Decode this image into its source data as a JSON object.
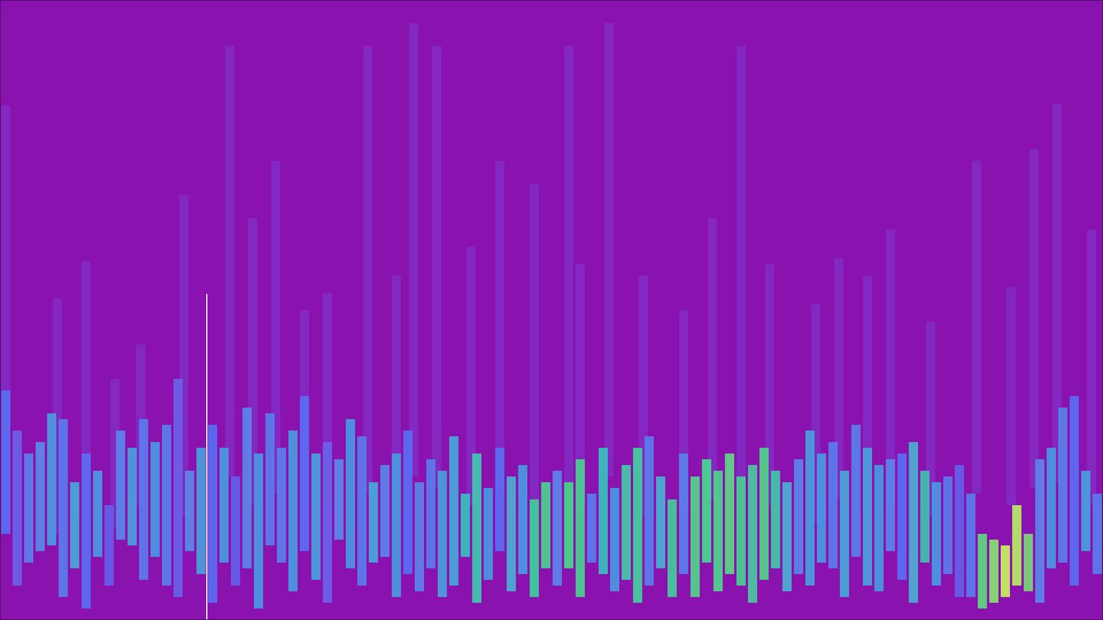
{
  "chart_data": {
    "type": "range_bar",
    "tick_labels": false,
    "xlim": [
      0,
      1920
    ],
    "ylim": [
      0,
      1080
    ],
    "background": {
      "color": "#7a44d8",
      "x": [
        10,
        100,
        150,
        200,
        245,
        320,
        400,
        440,
        480,
        530,
        570,
        640,
        690,
        720,
        760,
        820,
        870,
        930,
        990,
        1010,
        1060,
        1120,
        1190,
        1240,
        1290,
        1340,
        1420,
        1460,
        1510,
        1550,
        1620,
        1700,
        1760,
        1800,
        1840,
        1900
      ],
      "values": [
        896,
        560,
        625,
        420,
        480,
        740,
        1000,
        700,
        800,
        540,
        570,
        1000,
        600,
        1040,
        1000,
        650,
        800,
        760,
        1000,
        620,
        1040,
        600,
        540,
        700,
        1000,
        620,
        550,
        630,
        600,
        680,
        520,
        800,
        580,
        820,
        900,
        680
      ],
      "low": [
        200,
        150,
        180,
        160,
        200,
        180,
        250,
        200,
        220,
        180,
        200,
        220,
        180,
        250,
        230,
        200,
        220,
        190,
        240,
        200,
        250,
        180,
        190,
        210,
        240,
        200,
        170,
        210,
        190,
        200,
        180,
        220,
        200,
        230,
        240,
        200
      ]
    },
    "foreground": {
      "x": [
        10,
        30,
        50,
        70,
        90,
        110,
        130,
        150,
        170,
        190,
        210,
        230,
        250,
        270,
        290,
        310,
        330,
        350,
        370,
        390,
        410,
        430,
        450,
        470,
        490,
        510,
        530,
        550,
        570,
        590,
        610,
        630,
        650,
        670,
        690,
        710,
        730,
        750,
        770,
        790,
        810,
        830,
        850,
        870,
        890,
        910,
        930,
        950,
        970,
        990,
        1010,
        1030,
        1050,
        1070,
        1090,
        1110,
        1130,
        1150,
        1170,
        1190,
        1210,
        1230,
        1250,
        1270,
        1290,
        1310,
        1330,
        1350,
        1370,
        1390,
        1410,
        1430,
        1450,
        1470,
        1490,
        1510,
        1530,
        1550,
        1570,
        1590,
        1610,
        1630,
        1650,
        1670,
        1690,
        1710,
        1730,
        1750,
        1770,
        1790,
        1810,
        1830,
        1850,
        1870,
        1890,
        1910
      ],
      "values": [
        400,
        330,
        290,
        310,
        360,
        350,
        240,
        290,
        260,
        200,
        330,
        300,
        350,
        310,
        340,
        420,
        260,
        300,
        340,
        300,
        250,
        370,
        290,
        360,
        300,
        330,
        390,
        290,
        310,
        280,
        350,
        320,
        240,
        270,
        290,
        330,
        240,
        280,
        260,
        320,
        220,
        290,
        230,
        300,
        250,
        270,
        210,
        240,
        260,
        240,
        280,
        220,
        300,
        230,
        270,
        300,
        320,
        250,
        210,
        290,
        250,
        280,
        260,
        290,
        250,
        270,
        300,
        260,
        240,
        280,
        330,
        290,
        310,
        260,
        340,
        300,
        270,
        280,
        290,
        310,
        260,
        240,
        250,
        270,
        220,
        150,
        140,
        130,
        200,
        150,
        280,
        300,
        370,
        390,
        260,
        220
      ],
      "low": [
        150,
        60,
        100,
        120,
        130,
        40,
        90,
        20,
        110,
        60,
        140,
        130,
        70,
        110,
        60,
        40,
        120,
        80,
        30,
        100,
        60,
        90,
        20,
        130,
        100,
        50,
        120,
        70,
        30,
        140,
        90,
        60,
        100,
        110,
        40,
        80,
        50,
        90,
        40,
        60,
        110,
        30,
        70,
        120,
        50,
        80,
        40,
        90,
        60,
        90,
        40,
        100,
        80,
        50,
        70,
        30,
        60,
        90,
        40,
        80,
        40,
        100,
        50,
        80,
        60,
        30,
        70,
        90,
        50,
        80,
        60,
        100,
        90,
        40,
        110,
        60,
        50,
        120,
        70,
        30,
        100,
        60,
        80,
        40,
        40,
        20,
        30,
        40,
        60,
        50,
        30,
        90,
        100,
        60,
        120,
        80
      ],
      "colors": [
        "#5a6ef2",
        "#6a62ea",
        "#5a80ea",
        "#5a8ae6",
        "#4b9ae0",
        "#5a7cec",
        "#48a8d8",
        "#5a6ef2",
        "#4a98e2",
        "#6460ea",
        "#5a86e8",
        "#4aa0dc",
        "#5a7cec",
        "#4a98e2",
        "#5a80ea",
        "#6a62ea",
        "#5a8ae6",
        "#4aa0dc",
        "#5a6ef2",
        "#4b9ae0",
        "#6460ea",
        "#5a86e8",
        "#4a98e2",
        "#5a7cec",
        "#5a80ea",
        "#4b9ae0",
        "#5a6ef2",
        "#4aa0dc",
        "#6a62ea",
        "#5a8ae6",
        "#4a98e2",
        "#5a7cec",
        "#48a8d8",
        "#5a86e8",
        "#4b9ae0",
        "#5a6ef2",
        "#5a86e8",
        "#5a7cec",
        "#4aa0dc",
        "#48a8d8",
        "#38c0c0",
        "#40c8b0",
        "#4a98e2",
        "#5a6ef2",
        "#4ab0d0",
        "#4a98e2",
        "#3ecf9a",
        "#4ad090",
        "#5a86e8",
        "#48d88a",
        "#4ad090",
        "#5a7cec",
        "#38c0c0",
        "#4a98e2",
        "#48c8a8",
        "#42d09c",
        "#5a7cec",
        "#4ab0d0",
        "#44cc9c",
        "#5a80ea",
        "#52d48a",
        "#48d890",
        "#4ed68c",
        "#5cd884",
        "#46d092",
        "#4ac8a0",
        "#50d488",
        "#40c8a8",
        "#4ab0d0",
        "#5a86e8",
        "#4aa0dc",
        "#4a98e2",
        "#5a7cec",
        "#48a8d8",
        "#5a80ea",
        "#4aa0dc",
        "#4a98e2",
        "#5a86e8",
        "#5a6ef2",
        "#4ab0d0",
        "#40c0b0",
        "#4a98e2",
        "#5a7cec",
        "#6460ea",
        "#5a7cec",
        "#5ed880",
        "#88e070",
        "#c6f060",
        "#b8ec66",
        "#7ad878",
        "#5a86e8",
        "#4a98e2",
        "#5a80ea",
        "#5a6ef2",
        "#4aa0dc",
        "#5a7cec"
      ]
    },
    "highlight": {
      "x": 360,
      "low": 0,
      "values": 568,
      "color": "#ffffff"
    }
  }
}
